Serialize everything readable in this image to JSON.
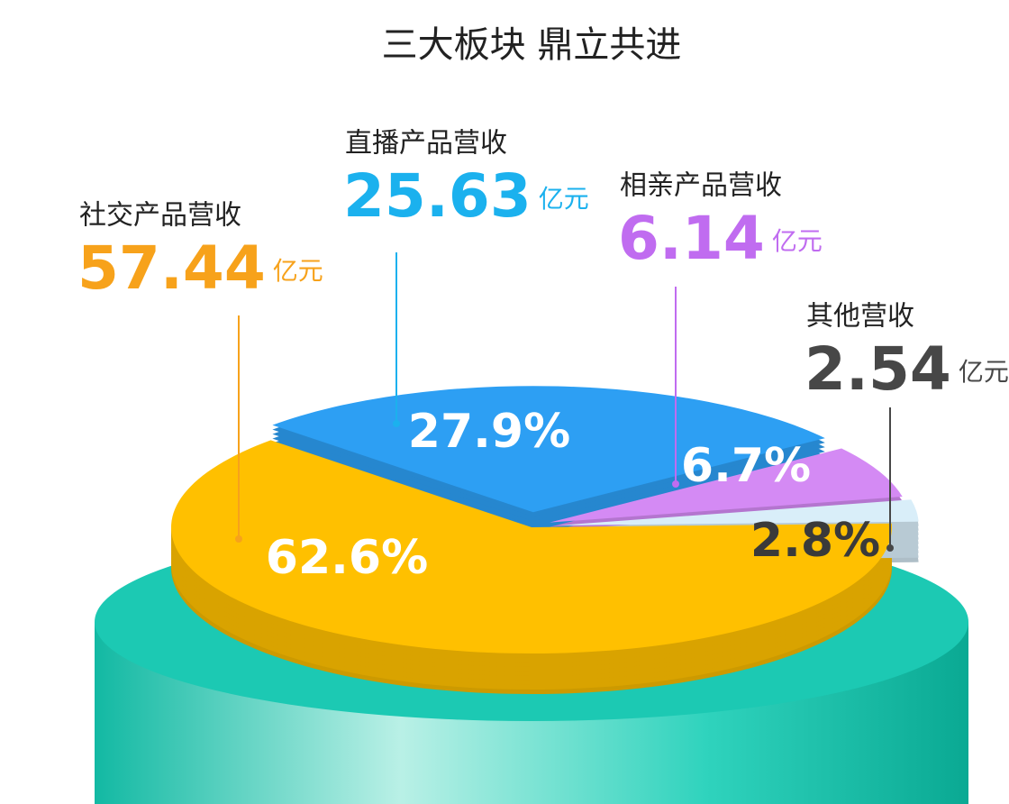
{
  "chart_data": {
    "type": "pie",
    "subtitle": "三大板块 鼎立共进",
    "categories": [
      "社交产品营收",
      "直播产品营收",
      "相亲产品营收",
      "其他营收"
    ],
    "values": [
      62.6,
      27.9,
      6.7,
      2.8
    ],
    "value_labels": [
      "62.6%",
      "27.9%",
      "6.7%",
      "2.8%"
    ],
    "amounts": [
      57.44,
      25.63,
      6.14,
      2.54
    ],
    "unit": "亿元",
    "colors": [
      "#ffc000",
      "#2d9ff3",
      "#d48af4",
      "#d9eef9"
    ],
    "label_colors": [
      "#f7a21b",
      "#1bb1ee",
      "#c06cf0",
      "#474747"
    ]
  }
}
